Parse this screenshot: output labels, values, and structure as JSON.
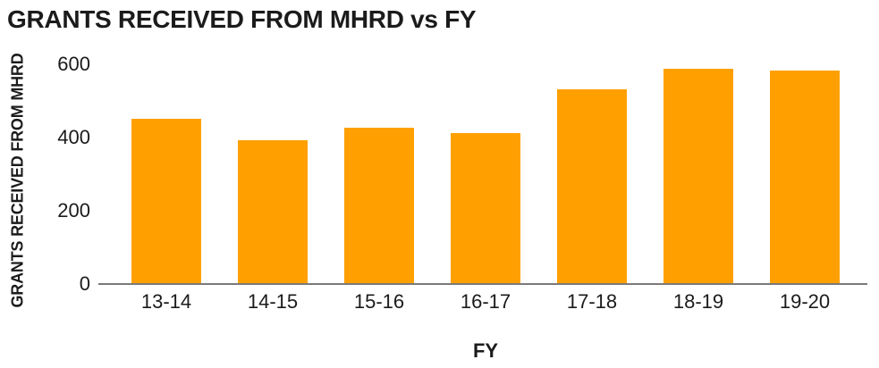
{
  "colors": {
    "bar": "#FFA000",
    "axis_line": "#7a7a7a",
    "text": "#1b1b1b",
    "background": "#ffffff"
  },
  "chart_data": {
    "type": "bar",
    "title": "GRANTS RECEIVED FROM MHRD vs FY",
    "xlabel": "FY",
    "ylabel": "GRANTS RECEIVED FROM MHRD",
    "categories": [
      "13-14",
      "14-15",
      "15-16",
      "16-17",
      "17-18",
      "18-19",
      "19-20"
    ],
    "values": [
      450,
      390,
      425,
      410,
      530,
      585,
      580
    ],
    "ylim": [
      0,
      600
    ],
    "yticks": [
      0,
      200,
      400,
      600
    ],
    "grid": false,
    "legend": false,
    "bar_color": "#FFA000"
  }
}
